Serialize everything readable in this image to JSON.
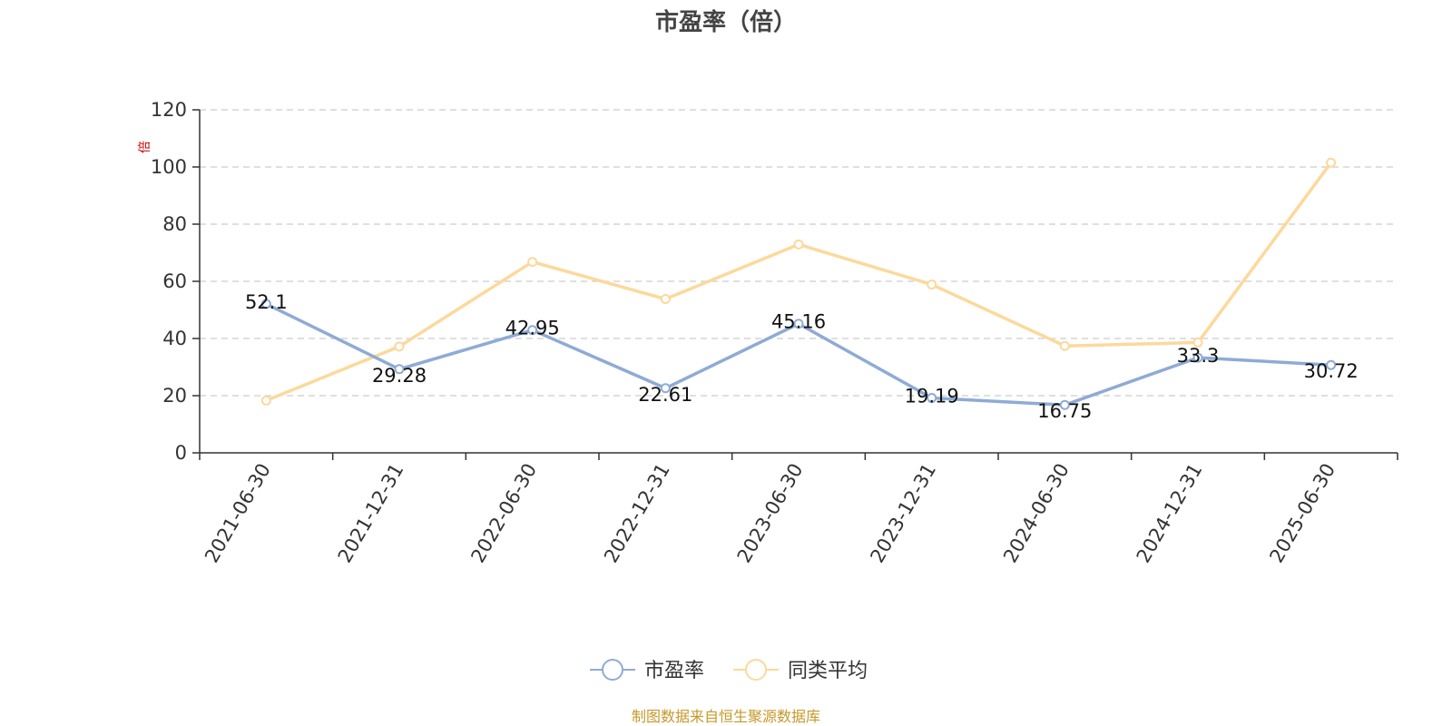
{
  "chart_data": {
    "type": "line",
    "title": "市盈率（倍）",
    "ylabel": "倍",
    "ylim": [
      0,
      120
    ],
    "yticks": [
      0,
      20,
      40,
      60,
      80,
      100,
      120
    ],
    "grid": true,
    "legend_placement": "bottom-center",
    "categories": [
      "2021-06-30",
      "2021-12-31",
      "2022-06-30",
      "2022-12-31",
      "2023-06-30",
      "2023-12-31",
      "2024-06-30",
      "2024-12-31",
      "2025-06-30"
    ],
    "series": [
      {
        "name": "市盈率",
        "color": "#8eabd6",
        "values": [
          52.1,
          29.28,
          42.95,
          22.61,
          45.16,
          19.19,
          16.75,
          33.3,
          30.72
        ],
        "labels": [
          "52.1",
          "29.28",
          "42.95",
          "22.61",
          "45.16",
          "19.19",
          "16.75",
          "33.3",
          "30.72"
        ]
      },
      {
        "name": "同类平均",
        "color": "#fcd99b",
        "values": [
          18.3,
          37.2,
          66.8,
          53.8,
          72.9,
          58.9,
          37.4,
          38.6,
          101.5
        ]
      }
    ],
    "source": "制图数据来自恒生聚源数据库"
  }
}
